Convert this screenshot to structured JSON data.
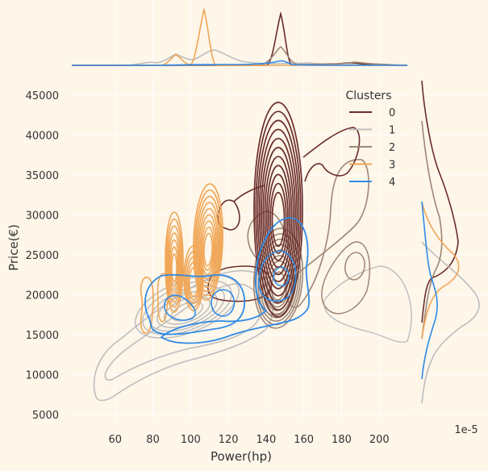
{
  "chart_data": {
    "type": "kde-jointplot",
    "xlabel": "Power(hp)",
    "ylabel": "Price(€)",
    "x_ticks": [
      60,
      80,
      100,
      120,
      140,
      160,
      180,
      200
    ],
    "y_ticks": [
      5000,
      10000,
      15000,
      20000,
      25000,
      30000,
      35000,
      40000,
      45000
    ],
    "xlim": [
      37,
      217
    ],
    "ylim": [
      4200,
      47200
    ],
    "grid": true,
    "marginal_offset_label": "1e-5",
    "legend": {
      "title": "Clusters",
      "placement": "top-right"
    },
    "series": [
      {
        "name": "0",
        "color": "#6b2d2a",
        "peaks": [
          {
            "x": 150,
            "y": 33000
          },
          {
            "x": 190,
            "y": 30000
          }
        ]
      },
      {
        "name": "1",
        "color": "#bdbdbd",
        "peaks": [
          {
            "x": 110,
            "y": 19500
          }
        ]
      },
      {
        "name": "2",
        "color": "#9e8676",
        "peaks": [
          {
            "x": 150,
            "y": 22000
          },
          {
            "x": 190,
            "y": 22000
          }
        ]
      },
      {
        "name": "3",
        "color": "#f0a656",
        "peaks": [
          {
            "x": 95,
            "y": 22000
          },
          {
            "x": 110,
            "y": 23000
          }
        ]
      },
      {
        "name": "4",
        "color": "#2f8ae6",
        "peaks": [
          {
            "x": 100,
            "y": 19000
          },
          {
            "x": 150,
            "y": 22000
          }
        ]
      }
    ]
  }
}
